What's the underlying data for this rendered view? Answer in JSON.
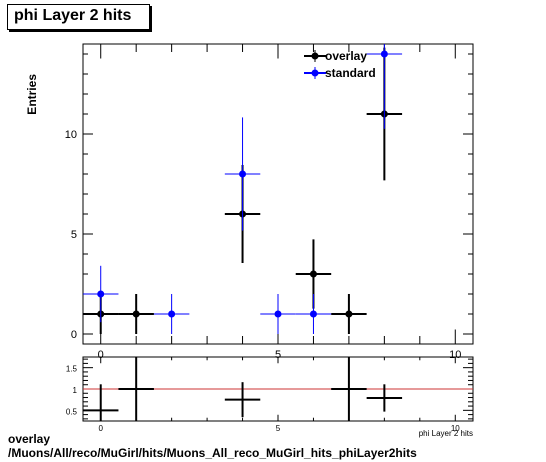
{
  "title": "phi Layer 2 hits",
  "footer": {
    "line1": "overlay",
    "line2": "/Muons/All/reco/MuGirl/hits/Muons_All_reco_MuGirl_hits_phiLayer2hits"
  },
  "colors": {
    "overlay": "#000000",
    "standard": "#0000ff",
    "ratio_line": "#cc3333"
  },
  "chart_data": [
    {
      "type": "scatter",
      "title": "phi Layer 2 hits",
      "ylabel": "Entries",
      "xlabel": "",
      "xlim": [
        -0.5,
        10.5
      ],
      "ylim": [
        -0.5,
        14.5
      ],
      "xticks": [
        0,
        5,
        10
      ],
      "yticks": [
        0,
        5,
        10
      ],
      "legend_position": "top-right",
      "series": [
        {
          "name": "overlay",
          "color": "#000000",
          "points": [
            {
              "x": 0,
              "y": 1,
              "xerr": 0.5,
              "yerr": 1.0
            },
            {
              "x": 1,
              "y": 1,
              "xerr": 0.5,
              "yerr": 1.0
            },
            {
              "x": 4,
              "y": 6,
              "xerr": 0.5,
              "yerr": 2.45
            },
            {
              "x": 6,
              "y": 3,
              "xerr": 0.5,
              "yerr": 1.73
            },
            {
              "x": 7,
              "y": 1,
              "xerr": 0.5,
              "yerr": 1.0
            },
            {
              "x": 8,
              "y": 11,
              "xerr": 0.5,
              "yerr": 3.32
            }
          ]
        },
        {
          "name": "standard",
          "color": "#0000ff",
          "points": [
            {
              "x": 0,
              "y": 2,
              "xerr": 0.5,
              "yerr": 1.41
            },
            {
              "x": 2,
              "y": 1,
              "xerr": 0.5,
              "yerr": 1.0
            },
            {
              "x": 4,
              "y": 8,
              "xerr": 0.5,
              "yerr": 2.83
            },
            {
              "x": 5,
              "y": 1,
              "xerr": 0.5,
              "yerr": 1.0
            },
            {
              "x": 6,
              "y": 1,
              "xerr": 0.5,
              "yerr": 1.0
            },
            {
              "x": 8,
              "y": 14,
              "xerr": 0.5,
              "yerr": 3.74
            }
          ]
        }
      ]
    },
    {
      "type": "scatter",
      "xlim": [
        -0.5,
        10.5
      ],
      "ylim": [
        0.25,
        1.75
      ],
      "xticks": [
        0,
        5,
        10
      ],
      "yticks": [
        0.5,
        1,
        1.5
      ],
      "reference_line": 1,
      "xlabel": "phi Layer 2 hits",
      "series": [
        {
          "name": "",
          "color": "#000000",
          "points": [
            {
              "x": 0,
              "y": 0.5,
              "xerr": 0.5,
              "yerr": 0.61
            },
            {
              "x": 1,
              "y": 1.0,
              "xerr": 0.5,
              "yerr": 1.41
            },
            {
              "x": 4,
              "y": 0.75,
              "xerr": 0.5,
              "yerr": 0.41
            },
            {
              "x": 7,
              "y": 1.0,
              "xerr": 0.5,
              "yerr": 1.41
            },
            {
              "x": 8,
              "y": 0.79,
              "xerr": 0.5,
              "yerr": 0.32
            }
          ]
        }
      ]
    }
  ]
}
